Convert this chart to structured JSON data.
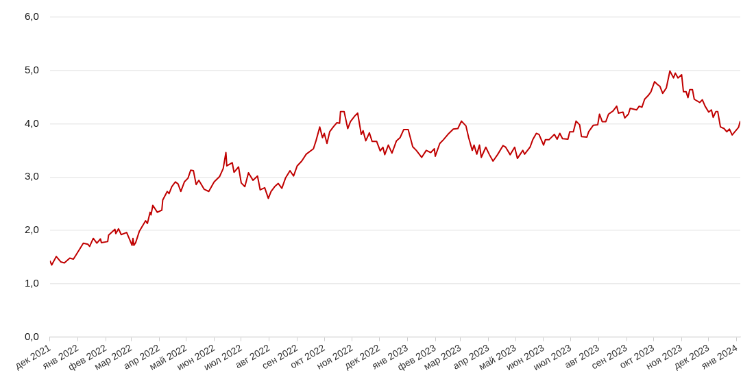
{
  "chart_data": {
    "type": "line",
    "x": [
      "2021-12-01",
      "2021-12-03",
      "2021-12-08",
      "2021-12-13",
      "2021-12-17",
      "2021-12-23",
      "2021-12-27",
      "2021-12-30",
      "2022-01-07",
      "2022-01-12",
      "2022-01-14",
      "2022-01-18",
      "2022-01-22",
      "2022-01-26",
      "2022-01-27",
      "2022-02-03",
      "2022-02-04",
      "2022-02-11",
      "2022-02-12",
      "2022-02-15",
      "2022-02-18",
      "2022-02-24",
      "2022-02-27",
      "2022-03-02",
      "2022-03-03",
      "2022-03-04",
      "2022-03-06",
      "2022-03-10",
      "2022-03-17",
      "2022-03-19",
      "2022-03-22",
      "2022-03-23",
      "2022-03-25",
      "2022-03-30",
      "2022-04-04",
      "2022-04-05",
      "2022-04-10",
      "2022-04-12",
      "2022-04-15",
      "2022-04-19",
      "2022-04-22",
      "2022-04-25",
      "2022-04-29",
      "2022-05-03",
      "2022-05-06",
      "2022-05-09",
      "2022-05-12",
      "2022-05-15",
      "2022-05-21",
      "2022-05-26",
      "2022-06-01",
      "2022-06-07",
      "2022-06-11",
      "2022-06-14",
      "2022-06-15",
      "2022-06-21",
      "2022-06-23",
      "2022-06-28",
      "2022-07-01",
      "2022-07-05",
      "2022-07-09",
      "2022-07-14",
      "2022-07-19",
      "2022-07-22",
      "2022-07-27",
      "2022-07-31",
      "2022-08-03",
      "2022-08-07",
      "2022-08-11",
      "2022-08-15",
      "2022-08-19",
      "2022-08-24",
      "2022-08-28",
      "2022-09-01",
      "2022-09-06",
      "2022-09-11",
      "2022-09-19",
      "2022-09-22",
      "2022-09-26",
      "2022-09-29",
      "2022-10-01",
      "2022-10-04",
      "2022-10-07",
      "2022-10-11",
      "2022-10-15",
      "2022-10-18",
      "2022-10-19",
      "2022-10-23",
      "2022-10-27",
      "2022-10-30",
      "2022-11-04",
      "2022-11-07",
      "2022-11-11",
      "2022-11-13",
      "2022-11-16",
      "2022-11-20",
      "2022-11-23",
      "2022-11-28",
      "2022-12-02",
      "2022-12-05",
      "2022-12-07",
      "2022-12-11",
      "2022-12-15",
      "2022-12-20",
      "2022-12-24",
      "2022-12-28",
      "2023-01-02",
      "2023-01-07",
      "2023-01-11",
      "2023-01-17",
      "2023-01-22",
      "2023-01-27",
      "2023-01-31",
      "2023-02-01",
      "2023-02-06",
      "2023-02-10",
      "2023-02-15",
      "2023-02-21",
      "2023-02-26",
      "2023-03-02",
      "2023-03-07",
      "2023-03-10",
      "2023-03-14",
      "2023-03-16",
      "2023-03-19",
      "2023-03-22",
      "2023-03-24",
      "2023-03-29",
      "2023-04-02",
      "2023-04-06",
      "2023-04-11",
      "2023-04-17",
      "2023-04-20",
      "2023-04-25",
      "2023-04-30",
      "2023-05-03",
      "2023-05-09",
      "2023-05-11",
      "2023-05-17",
      "2023-05-20",
      "2023-05-24",
      "2023-05-27",
      "2023-06-01",
      "2023-06-03",
      "2023-06-07",
      "2023-06-13",
      "2023-06-16",
      "2023-06-19",
      "2023-06-22",
      "2023-06-28",
      "2023-06-30",
      "2023-07-04",
      "2023-07-07",
      "2023-07-11",
      "2023-07-13",
      "2023-07-19",
      "2023-07-21",
      "2023-07-26",
      "2023-07-31",
      "2023-08-02",
      "2023-08-05",
      "2023-08-09",
      "2023-08-12",
      "2023-08-17",
      "2023-08-21",
      "2023-08-23",
      "2023-08-28",
      "2023-08-30",
      "2023-09-03",
      "2023-09-05",
      "2023-09-12",
      "2023-09-15",
      "2023-09-18",
      "2023-09-21",
      "2023-09-25",
      "2023-09-28",
      "2023-10-02",
      "2023-10-05",
      "2023-10-08",
      "2023-10-11",
      "2023-10-15",
      "2023-10-19",
      "2023-10-23",
      "2023-10-25",
      "2023-10-28",
      "2023-11-01",
      "2023-11-03",
      "2023-11-06",
      "2023-11-08",
      "2023-11-10",
      "2023-11-13",
      "2023-11-15",
      "2023-11-21",
      "2023-11-24",
      "2023-11-27",
      "2023-12-01",
      "2023-12-04",
      "2023-12-06",
      "2023-12-09",
      "2023-12-11",
      "2023-12-14",
      "2023-12-18",
      "2023-12-21",
      "2023-12-24",
      "2023-12-27",
      "2023-12-30",
      "2024-01-03",
      "2024-01-05"
    ],
    "series": [
      {
        "color": "#c00000",
        "values": [
          1.43,
          1.35,
          1.51,
          1.41,
          1.39,
          1.48,
          1.46,
          1.54,
          1.76,
          1.74,
          1.7,
          1.85,
          1.76,
          1.84,
          1.77,
          1.79,
          1.91,
          2.02,
          1.94,
          2.03,
          1.92,
          1.96,
          1.84,
          1.72,
          1.85,
          1.72,
          1.77,
          1.98,
          2.18,
          2.13,
          2.34,
          2.29,
          2.47,
          2.34,
          2.38,
          2.57,
          2.73,
          2.69,
          2.82,
          2.91,
          2.87,
          2.73,
          2.91,
          2.98,
          3.13,
          3.12,
          2.86,
          2.94,
          2.77,
          2.73,
          2.91,
          3.01,
          3.16,
          3.46,
          3.21,
          3.27,
          3.09,
          3.19,
          2.89,
          2.82,
          3.08,
          2.94,
          3.02,
          2.76,
          2.8,
          2.6,
          2.73,
          2.82,
          2.88,
          2.79,
          2.98,
          3.12,
          3.02,
          3.21,
          3.3,
          3.43,
          3.53,
          3.69,
          3.94,
          3.74,
          3.82,
          3.63,
          3.85,
          3.94,
          4.02,
          4.01,
          4.23,
          4.23,
          3.91,
          4.04,
          4.15,
          4.2,
          3.8,
          3.87,
          3.68,
          3.83,
          3.67,
          3.67,
          3.49,
          3.56,
          3.42,
          3.6,
          3.45,
          3.68,
          3.74,
          3.89,
          3.89,
          3.57,
          3.5,
          3.37,
          3.5,
          3.46,
          3.53,
          3.39,
          3.63,
          3.7,
          3.8,
          3.9,
          3.91,
          4.05,
          3.96,
          3.74,
          3.5,
          3.6,
          3.43,
          3.6,
          3.37,
          3.56,
          3.42,
          3.3,
          3.42,
          3.59,
          3.56,
          3.42,
          3.56,
          3.35,
          3.5,
          3.43,
          3.56,
          3.7,
          3.82,
          3.8,
          3.6,
          3.7,
          3.7,
          3.8,
          3.71,
          3.82,
          3.72,
          3.71,
          3.85,
          3.85,
          4.05,
          3.98,
          3.76,
          3.75,
          3.85,
          3.97,
          3.98,
          4.18,
          4.04,
          4.04,
          4.18,
          4.24,
          4.33,
          4.2,
          4.22,
          4.11,
          4.18,
          4.29,
          4.26,
          4.33,
          4.31,
          4.46,
          4.53,
          4.6,
          4.79,
          4.74,
          4.7,
          4.57,
          4.67,
          4.99,
          4.86,
          4.95,
          4.86,
          4.92,
          4.6,
          4.6,
          4.49,
          4.64,
          4.64,
          4.46,
          4.4,
          4.45,
          4.33,
          4.22,
          4.26,
          4.12,
          4.23,
          4.23,
          3.94,
          3.91,
          3.85,
          3.9,
          3.79,
          3.85,
          3.93,
          4.05
        ]
      }
    ],
    "xlim": [
      "2021-12-01",
      "2024-01-05"
    ],
    "xticks": [
      {
        "value": "2021-12-01",
        "label": "дек 2021"
      },
      {
        "value": "2022-01-01",
        "label": "янв 2022"
      },
      {
        "value": "2022-02-01",
        "label": "фев 2022"
      },
      {
        "value": "2022-03-01",
        "label": "мар 2022"
      },
      {
        "value": "2022-04-01",
        "label": "апр 2022"
      },
      {
        "value": "2022-05-01",
        "label": "май 2022"
      },
      {
        "value": "2022-06-01",
        "label": "июн 2022"
      },
      {
        "value": "2022-07-01",
        "label": "июл 2022"
      },
      {
        "value": "2022-08-01",
        "label": "авг 2022"
      },
      {
        "value": "2022-09-01",
        "label": "сен 2022"
      },
      {
        "value": "2022-10-01",
        "label": "окт 2022"
      },
      {
        "value": "2022-11-01",
        "label": "ноя 2022"
      },
      {
        "value": "2022-12-01",
        "label": "дек 2022"
      },
      {
        "value": "2023-01-01",
        "label": "янв 2023"
      },
      {
        "value": "2023-02-01",
        "label": "фев 2023"
      },
      {
        "value": "2023-03-01",
        "label": "мар 2023"
      },
      {
        "value": "2023-04-01",
        "label": "апр 2023"
      },
      {
        "value": "2023-05-01",
        "label": "май 2023"
      },
      {
        "value": "2023-06-01",
        "label": "июн 2023"
      },
      {
        "value": "2023-07-01",
        "label": "июл 2023"
      },
      {
        "value": "2023-08-01",
        "label": "авг 2023"
      },
      {
        "value": "2023-09-01",
        "label": "сен 2023"
      },
      {
        "value": "2023-10-01",
        "label": "окт 2023"
      },
      {
        "value": "2023-11-01",
        "label": "ноя 2023"
      },
      {
        "value": "2023-12-01",
        "label": "дек 2023"
      },
      {
        "value": "2024-01-01",
        "label": "янв 2024"
      }
    ],
    "ylim": [
      0,
      6
    ],
    "yticks": [
      {
        "value": 0,
        "label": "0,0"
      },
      {
        "value": 1,
        "label": "1,0"
      },
      {
        "value": 2,
        "label": "2,0"
      },
      {
        "value": 3,
        "label": "3,0"
      },
      {
        "value": 4,
        "label": "4,0"
      },
      {
        "value": 5,
        "label": "5,0"
      },
      {
        "value": 6,
        "label": "6,0"
      }
    ],
    "grid": "y",
    "marker": "none",
    "line_style": "solid",
    "legend": false
  }
}
